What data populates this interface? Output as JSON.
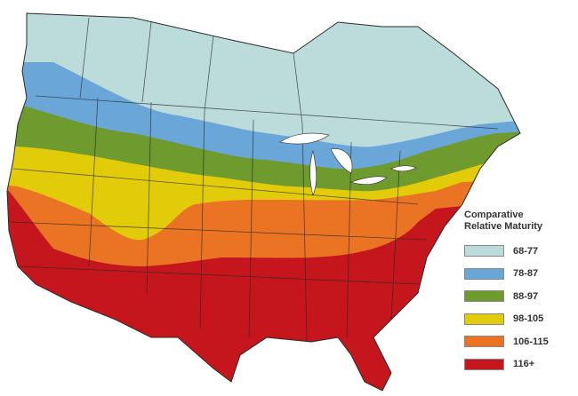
{
  "legend": {
    "title_line1": "Comparative",
    "title_line2": "Relative Maturity",
    "items": [
      {
        "label": "68-77",
        "color": "#bcdcdc"
      },
      {
        "label": "78-87",
        "color": "#6aa6d8"
      },
      {
        "label": "88-97",
        "color": "#6f9a2e"
      },
      {
        "label": "98-105",
        "color": "#e2cc0a"
      },
      {
        "label": "106-115",
        "color": "#ea7424"
      },
      {
        "label": "116+",
        "color": "#c4161c"
      }
    ]
  },
  "map": {
    "region": "United States and southern Canada",
    "water_color": "#ffffff",
    "border_color": "#2a2a2a"
  }
}
